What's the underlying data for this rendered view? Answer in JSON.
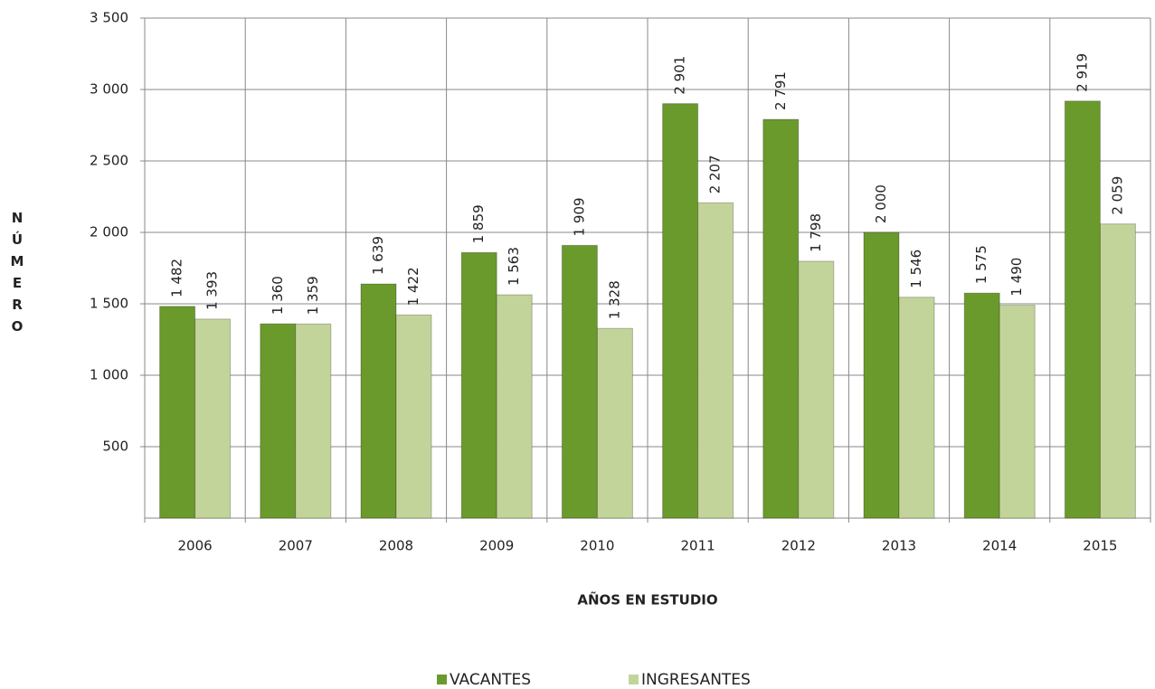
{
  "chart_data": {
    "type": "bar",
    "x_label": "AÑOS EN ESTUDIO",
    "y_label": "NÚMERO",
    "categories": [
      "2006",
      "2007",
      "2008",
      "2009",
      "2010",
      "2011",
      "2012",
      "2013",
      "2014",
      "2015"
    ],
    "series": [
      {
        "name": "VACANTES",
        "color": "#6b9a2c",
        "values": [
          1482,
          1360,
          1639,
          1859,
          1909,
          2901,
          2791,
          2000,
          1575,
          2919
        ],
        "value_labels": [
          "1 482",
          "1 360",
          "1 639",
          "1 859",
          "1 909",
          "2 901",
          "2 791",
          "2 000",
          "1 575",
          "2 919"
        ]
      },
      {
        "name": "INGRESANTES",
        "color": "#c3d49a",
        "values": [
          1393,
          1359,
          1422,
          1563,
          1328,
          2207,
          1798,
          1546,
          1490,
          2059
        ],
        "value_labels": [
          "1 393",
          "1 359",
          "1 422",
          "1 563",
          "1 328",
          "2 207",
          "1 798",
          "1 546",
          "1 490",
          "2 059"
        ]
      }
    ],
    "ylim": [
      0,
      3500
    ],
    "yticks": [
      {
        "value": 500,
        "label": "500"
      },
      {
        "value": 1000,
        "label": "1 000"
      },
      {
        "value": 1500,
        "label": "1 500"
      },
      {
        "value": 2000,
        "label": "2 000"
      },
      {
        "value": 2500,
        "label": "2 500"
      },
      {
        "value": 3000,
        "label": "3 000"
      },
      {
        "value": 3500,
        "label": "3 500"
      }
    ],
    "grid": true,
    "legend": "bottom"
  }
}
